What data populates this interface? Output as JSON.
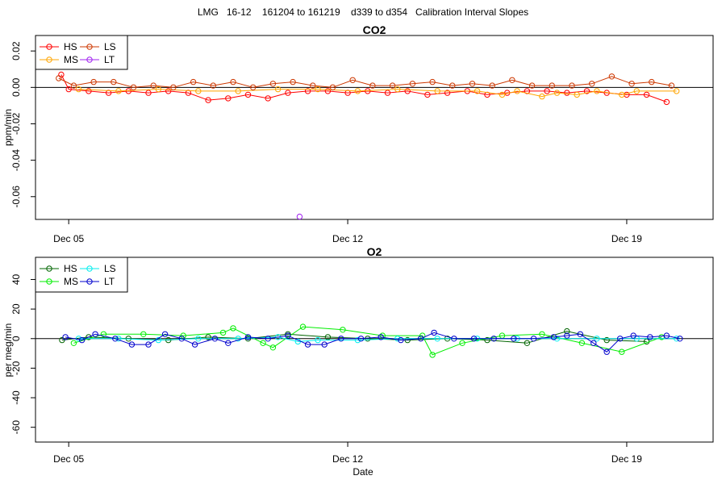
{
  "page_title": "LMG   16-12    161204 to 161219    d339 to d354   Calibration Interval Slopes",
  "chart_data": [
    {
      "type": "scatter",
      "title": "CO2",
      "ylabel": "ppm/min",
      "xlabel": "",
      "x_range": [
        "2016-12-04 04:00",
        "2016-12-21 04:00"
      ],
      "ylim": [
        -0.0725,
        0.0285
      ],
      "yticks": [
        0.02,
        0.0,
        -0.02,
        -0.04,
        -0.06
      ],
      "ytick_labels": [
        "0.02",
        "0.00",
        "-0.02",
        "-0.04",
        "-0.06"
      ],
      "xticks": [
        "2016-12-05 00:00",
        "2016-12-12 00:00",
        "2016-12-19 00:00"
      ],
      "xtick_labels": [
        "Dec 05",
        "Dec 12",
        "Dec 19"
      ],
      "zero_line": true,
      "legend": {
        "placement": "top-left",
        "entries": [
          {
            "name": "HS",
            "color": "#ff0000"
          },
          {
            "name": "MS",
            "color": "#ffa500"
          },
          {
            "name": "LS",
            "color": "#cd3700"
          },
          {
            "name": "LT",
            "color": "#a020f0"
          }
        ]
      },
      "series": [
        {
          "name": "HS",
          "color": "#ff0000",
          "points": [
            [
              "2016-12-04 19:30",
              0.007
            ],
            [
              "2016-12-05 00:00",
              -0.001
            ],
            [
              "2016-12-05 12:00",
              -0.002
            ],
            [
              "2016-12-06 00:00",
              -0.003
            ],
            [
              "2016-12-06 12:00",
              -0.002
            ],
            [
              "2016-12-07 00:00",
              -0.003
            ],
            [
              "2016-12-07 12:00",
              -0.002
            ],
            [
              "2016-12-08 00:00",
              -0.003
            ],
            [
              "2016-12-08 12:00",
              -0.007
            ],
            [
              "2016-12-09 00:00",
              -0.006
            ],
            [
              "2016-12-09 12:00",
              -0.004
            ],
            [
              "2016-12-10 00:00",
              -0.006
            ],
            [
              "2016-12-10 12:00",
              -0.003
            ],
            [
              "2016-12-11 00:00",
              -0.002
            ],
            [
              "2016-12-11 12:00",
              -0.002
            ],
            [
              "2016-12-12 00:00",
              -0.003
            ],
            [
              "2016-12-12 12:00",
              -0.002
            ],
            [
              "2016-12-13 00:00",
              -0.003
            ],
            [
              "2016-12-13 12:00",
              -0.002
            ],
            [
              "2016-12-14 00:00",
              -0.004
            ],
            [
              "2016-12-14 12:00",
              -0.003
            ],
            [
              "2016-12-15 00:00",
              -0.002
            ],
            [
              "2016-12-15 12:00",
              -0.004
            ],
            [
              "2016-12-16 00:00",
              -0.003
            ],
            [
              "2016-12-16 12:00",
              -0.002
            ],
            [
              "2016-12-17 00:00",
              -0.002
            ],
            [
              "2016-12-17 12:00",
              -0.003
            ],
            [
              "2016-12-18 00:00",
              -0.002
            ],
            [
              "2016-12-18 12:00",
              -0.003
            ],
            [
              "2016-12-19 00:00",
              -0.004
            ],
            [
              "2016-12-19 12:00",
              -0.004
            ],
            [
              "2016-12-20 00:00",
              -0.008
            ]
          ]
        },
        {
          "name": "MS",
          "color": "#ffa500",
          "points": [
            [
              "2016-12-05 06:00",
              -0.001
            ],
            [
              "2016-12-06 06:00",
              -0.002
            ],
            [
              "2016-12-07 06:00",
              -0.001
            ],
            [
              "2016-12-08 06:00",
              -0.002
            ],
            [
              "2016-12-09 06:00",
              -0.002
            ],
            [
              "2016-12-10 06:00",
              -0.001
            ],
            [
              "2016-12-11 06:00",
              -0.001
            ],
            [
              "2016-12-12 06:00",
              -0.002
            ],
            [
              "2016-12-13 06:00",
              -0.001
            ],
            [
              "2016-12-14 06:00",
              -0.002
            ],
            [
              "2016-12-15 06:00",
              -0.002
            ],
            [
              "2016-12-15 21:00",
              -0.004
            ],
            [
              "2016-12-16 06:00",
              -0.002
            ],
            [
              "2016-12-16 21:00",
              -0.005
            ],
            [
              "2016-12-17 06:00",
              -0.003
            ],
            [
              "2016-12-17 18:00",
              -0.004
            ],
            [
              "2016-12-18 06:00",
              -0.002
            ],
            [
              "2016-12-18 21:00",
              -0.004
            ],
            [
              "2016-12-19 06:00",
              -0.002
            ],
            [
              "2016-12-20 06:00",
              -0.002
            ]
          ]
        },
        {
          "name": "LS",
          "color": "#cd3700",
          "points": [
            [
              "2016-12-04 18:00",
              0.005
            ],
            [
              "2016-12-05 03:00",
              0.001
            ],
            [
              "2016-12-05 15:00",
              0.003
            ],
            [
              "2016-12-06 03:00",
              0.003
            ],
            [
              "2016-12-06 15:00",
              0.0
            ],
            [
              "2016-12-07 03:00",
              0.001
            ],
            [
              "2016-12-07 15:00",
              0.0
            ],
            [
              "2016-12-08 03:00",
              0.003
            ],
            [
              "2016-12-08 15:00",
              0.001
            ],
            [
              "2016-12-09 03:00",
              0.003
            ],
            [
              "2016-12-09 15:00",
              0.0
            ],
            [
              "2016-12-10 03:00",
              0.002
            ],
            [
              "2016-12-10 15:00",
              0.003
            ],
            [
              "2016-12-11 03:00",
              0.001
            ],
            [
              "2016-12-11 15:00",
              0.0
            ],
            [
              "2016-12-12 03:00",
              0.004
            ],
            [
              "2016-12-12 15:00",
              0.001
            ],
            [
              "2016-12-13 03:00",
              0.001
            ],
            [
              "2016-12-13 15:00",
              0.002
            ],
            [
              "2016-12-14 03:00",
              0.003
            ],
            [
              "2016-12-14 15:00",
              0.001
            ],
            [
              "2016-12-15 03:00",
              0.002
            ],
            [
              "2016-12-15 15:00",
              0.001
            ],
            [
              "2016-12-16 03:00",
              0.004
            ],
            [
              "2016-12-16 15:00",
              0.001
            ],
            [
              "2016-12-17 03:00",
              0.001
            ],
            [
              "2016-12-17 15:00",
              0.001
            ],
            [
              "2016-12-18 03:00",
              0.002
            ],
            [
              "2016-12-18 15:00",
              0.006
            ],
            [
              "2016-12-19 03:00",
              0.002
            ],
            [
              "2016-12-19 15:00",
              0.003
            ],
            [
              "2016-12-20 03:00",
              0.001
            ]
          ]
        },
        {
          "name": "LT",
          "color": "#a020f0",
          "points": [
            [
              "2016-12-10 19:00",
              -0.071
            ]
          ]
        }
      ]
    },
    {
      "type": "scatter",
      "title": "O2",
      "ylabel": "per meg/min",
      "xlabel": "Date",
      "x_range": [
        "2016-12-04 04:00",
        "2016-12-21 04:00"
      ],
      "ylim": [
        -70,
        55
      ],
      "yticks": [
        40,
        20,
        0,
        -20,
        -40,
        -60
      ],
      "ytick_labels": [
        "40",
        "20",
        "0",
        "-20",
        "-40",
        "-60"
      ],
      "xticks": [
        "2016-12-05 00:00",
        "2016-12-12 00:00",
        "2016-12-19 00:00"
      ],
      "xtick_labels": [
        "Dec 05",
        "Dec 12",
        "Dec 19"
      ],
      "zero_line": true,
      "legend": {
        "placement": "top-left",
        "entries": [
          {
            "name": "HS",
            "color": "#006400"
          },
          {
            "name": "MS",
            "color": "#00ee00"
          },
          {
            "name": "LS",
            "color": "#00eeee"
          },
          {
            "name": "LT",
            "color": "#0000cd"
          }
        ]
      },
      "series": [
        {
          "name": "HS",
          "color": "#006400",
          "points": [
            [
              "2016-12-04 20:00",
              -1
            ],
            [
              "2016-12-05 12:00",
              1
            ],
            [
              "2016-12-06 12:00",
              0
            ],
            [
              "2016-12-07 12:00",
              -1
            ],
            [
              "2016-12-08 12:00",
              1
            ],
            [
              "2016-12-09 12:00",
              0
            ],
            [
              "2016-12-10 12:00",
              3
            ],
            [
              "2016-12-11 12:00",
              1
            ],
            [
              "2016-12-12 12:00",
              0
            ],
            [
              "2016-12-13 12:00",
              -1
            ],
            [
              "2016-12-14 12:00",
              0
            ],
            [
              "2016-12-15 12:00",
              -1
            ],
            [
              "2016-12-16 12:00",
              -3
            ],
            [
              "2016-12-17 12:00",
              5
            ],
            [
              "2016-12-18 12:00",
              -1
            ],
            [
              "2016-12-19 12:00",
              -2
            ]
          ]
        },
        {
          "name": "MS",
          "color": "#00ee00",
          "points": [
            [
              "2016-12-05 03:00",
              -3
            ],
            [
              "2016-12-05 21:00",
              3
            ],
            [
              "2016-12-06 21:00",
              3
            ],
            [
              "2016-12-07 21:00",
              2
            ],
            [
              "2016-12-08 21:00",
              4
            ],
            [
              "2016-12-09 03:00",
              7
            ],
            [
              "2016-12-09 21:00",
              -3
            ],
            [
              "2016-12-10 03:00",
              -6
            ],
            [
              "2016-12-10 21:00",
              8
            ],
            [
              "2016-12-11 21:00",
              6
            ],
            [
              "2016-12-12 21:00",
              2
            ],
            [
              "2016-12-13 21:00",
              2
            ],
            [
              "2016-12-14 03:00",
              -11
            ],
            [
              "2016-12-14 21:00",
              -3
            ],
            [
              "2016-12-15 21:00",
              2
            ],
            [
              "2016-12-16 21:00",
              3
            ],
            [
              "2016-12-17 21:00",
              -3
            ],
            [
              "2016-12-18 21:00",
              -9
            ],
            [
              "2016-12-19 21:00",
              1
            ]
          ]
        },
        {
          "name": "LS",
          "color": "#00eeee",
          "points": [
            [
              "2016-12-05 06:00",
              0
            ],
            [
              "2016-12-06 06:00",
              0
            ],
            [
              "2016-12-07 06:00",
              -1
            ],
            [
              "2016-12-08 06:00",
              0
            ],
            [
              "2016-12-09 06:00",
              0
            ],
            [
              "2016-12-10 06:00",
              1
            ],
            [
              "2016-12-10 18:00",
              -2
            ],
            [
              "2016-12-11 06:00",
              -1
            ],
            [
              "2016-12-12 06:00",
              -1
            ],
            [
              "2016-12-13 06:00",
              0
            ],
            [
              "2016-12-14 06:00",
              0
            ],
            [
              "2016-12-15 06:00",
              0
            ],
            [
              "2016-12-16 06:00",
              0
            ],
            [
              "2016-12-17 06:00",
              0
            ],
            [
              "2016-12-18 06:00",
              0
            ],
            [
              "2016-12-19 06:00",
              0
            ],
            [
              "2016-12-20 06:00",
              0
            ]
          ]
        },
        {
          "name": "LT",
          "color": "#0000cd",
          "points": [
            [
              "2016-12-04 22:00",
              1
            ],
            [
              "2016-12-05 08:00",
              -1
            ],
            [
              "2016-12-05 16:00",
              3
            ],
            [
              "2016-12-06 04:00",
              0
            ],
            [
              "2016-12-06 14:00",
              -4
            ],
            [
              "2016-12-07 00:00",
              -4
            ],
            [
              "2016-12-07 10:00",
              3
            ],
            [
              "2016-12-07 20:00",
              0
            ],
            [
              "2016-12-08 04:00",
              -4
            ],
            [
              "2016-12-08 16:00",
              0
            ],
            [
              "2016-12-09 00:00",
              -3
            ],
            [
              "2016-12-09 12:00",
              1
            ],
            [
              "2016-12-10 00:00",
              0
            ],
            [
              "2016-12-10 12:00",
              2
            ],
            [
              "2016-12-11 00:00",
              -4
            ],
            [
              "2016-12-11 10:00",
              -4
            ],
            [
              "2016-12-11 20:00",
              0
            ],
            [
              "2016-12-12 08:00",
              0
            ],
            [
              "2016-12-12 20:00",
              1
            ],
            [
              "2016-12-13 08:00",
              -1
            ],
            [
              "2016-12-13 20:00",
              0
            ],
            [
              "2016-12-14 04:00",
              4
            ],
            [
              "2016-12-14 16:00",
              0
            ],
            [
              "2016-12-15 04:00",
              0
            ],
            [
              "2016-12-15 16:00",
              0
            ],
            [
              "2016-12-16 04:00",
              0
            ],
            [
              "2016-12-16 16:00",
              0
            ],
            [
              "2016-12-17 04:00",
              1
            ],
            [
              "2016-12-17 12:00",
              2
            ],
            [
              "2016-12-17 20:00",
              3
            ],
            [
              "2016-12-18 04:00",
              -3
            ],
            [
              "2016-12-18 12:00",
              -9
            ],
            [
              "2016-12-18 20:00",
              0
            ],
            [
              "2016-12-19 04:00",
              2
            ],
            [
              "2016-12-19 14:00",
              1
            ],
            [
              "2016-12-20 00:00",
              2
            ],
            [
              "2016-12-20 08:00",
              0
            ]
          ]
        }
      ]
    }
  ]
}
